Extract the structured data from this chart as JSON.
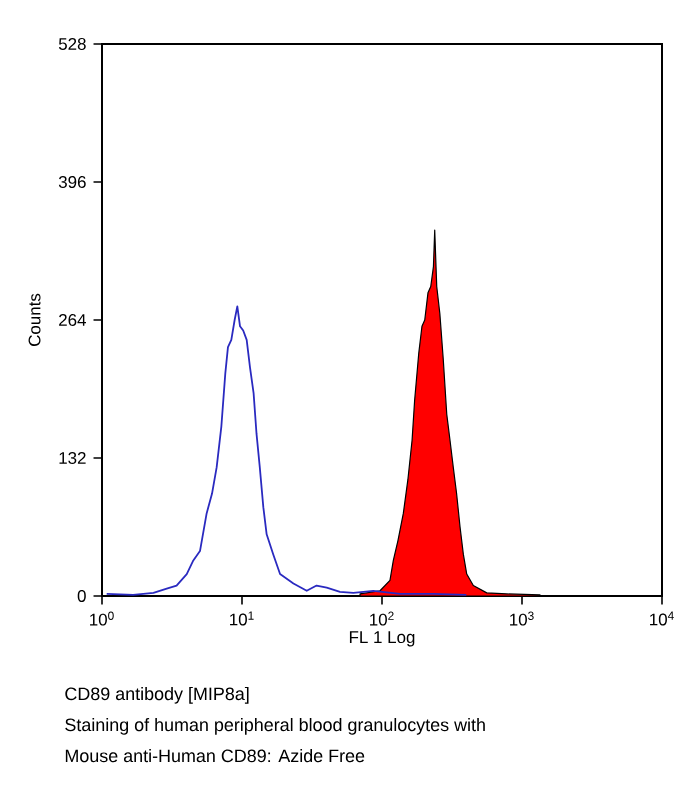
{
  "chart_data": {
    "type": "line",
    "xlabel": "FL 1 Log",
    "ylabel": "Counts",
    "log": "x",
    "x": [
      1.08,
      1.67,
      2.33,
      2.9,
      3.41,
      4.03,
      4.49,
      5.01,
      5.59,
      6.11,
      6.59,
      7.12,
      7.6,
      7.94,
      8.39,
      8.86,
      9.26,
      9.68,
      10.2,
      10.8,
      11.4,
      12.1,
      12.7,
      13.4,
      14.2,
      15.0,
      16.7,
      18.7,
      23.3,
      29.0,
      34.1,
      40.3,
      50.1,
      62.4,
      86.7,
      134.5,
      232.6,
      400
    ],
    "series": [
      {
        "color": "#2a2ac0",
        "values": [
          2,
          1,
          3,
          7,
          10,
          21,
          34,
          43,
          79,
          98,
          123,
          162,
          213,
          238,
          245,
          264,
          277,
          258,
          254,
          245,
          219,
          194,
          155,
          123,
          85,
          59,
          40,
          21,
          12,
          5,
          10,
          8,
          4,
          3,
          5,
          2,
          2,
          1
        ]
      },
      {
        "type": "area",
        "color": "#ff0000",
        "x": [
          69.7,
          96.8,
          114,
          120.5,
          130,
          142,
          153,
          164,
          171,
          183,
          193,
          202,
          213,
          223,
          233,
          238,
          246,
          259,
          274,
          290,
          306,
          323,
          341,
          361,
          381,
          403,
          449,
          560,
          777,
          1345
        ],
        "values": [
          2,
          5,
          15,
          34,
          53,
          79,
          111,
          149,
          187,
          232,
          258,
          264,
          290,
          296,
          315,
          350,
          296,
          270,
          226,
          174,
          149,
          123,
          98,
          66,
          40,
          21,
          10,
          3,
          2,
          1
        ]
      }
    ],
    "xlim": [
      1,
      10000
    ],
    "xticks": [
      {
        "value": 1,
        "label": "10$^{0}$"
      },
      {
        "value": 10,
        "label": "10$^{1}$"
      },
      {
        "value": 100,
        "label": "10$^{2}$"
      },
      {
        "value": 1000,
        "label": "10$^{3}$"
      },
      {
        "value": 10000,
        "label": "10$^{4}$"
      }
    ],
    "ylim": [
      0,
      528
    ],
    "yticks": [
      0,
      132,
      264,
      396,
      528
    ],
    "annotations": [
      "CD89 antibody [MIP8a]",
      "Staining of human peripheral blood granulocytes with",
      "Mouse anti-Human CD89: Azide Free"
    ]
  }
}
